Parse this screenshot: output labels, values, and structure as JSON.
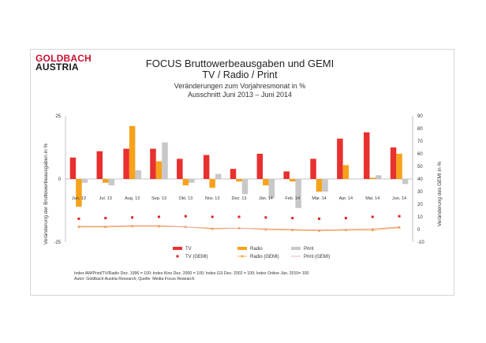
{
  "logo": {
    "line1": "GOLDBACH",
    "line2": "AUSTRIA"
  },
  "header": {
    "title": "FOCUS Bruttowerbeausgaben und GEMI",
    "subtitle": "TV / Radio / Print",
    "line3": "Veränderungen zum Vorjahresmonat in %",
    "line4": "Ausschnitt  Juni 2013 –  Juni 2014"
  },
  "footnotes": {
    "line1": "Index AW/Print/TV/Radio Dez. 1996 = 100; Index Kino Dez. 2000 = 100; Index GS Dez. 2002 = 100; Index Online  Jän. 2010= 100",
    "line2": "Autor: Goldbach Austria Research; Quelle: Media Focus Research"
  },
  "colors": {
    "tv": "#e8302f",
    "radio": "#f7a21b",
    "print": "#c8c8c8",
    "tv_gemi": "#d9261c",
    "radio_gemi": "#f0a030",
    "print_gemi": "#e6a0a0"
  },
  "chart_data": {
    "type": "bar",
    "title": "FOCUS Bruttowerbeausgaben und GEMI",
    "categories": [
      "Jun. 13",
      "Jul. 13",
      "Aug. 13",
      "Sep. 13",
      "Okt. 13",
      "Nov. 13",
      "Dez. 13",
      "Jän. 14",
      "Feb. 14",
      "Mär. 14",
      "Apr. 14",
      "Mai. 14",
      "Jun. 14"
    ],
    "ylabel": "Veränderung der Bruttowerbeausgaben in %",
    "y2label": "Veränderung des GEMI in %",
    "ylim": [
      -25,
      25
    ],
    "y2lim": [
      -10,
      90
    ],
    "yticks": [
      25,
      0,
      -25
    ],
    "y2ticks": [
      90,
      80,
      70,
      60,
      50,
      40,
      30,
      20,
      10,
      0,
      -10
    ],
    "legend_position": "bottom",
    "series": [
      {
        "name": "TV",
        "kind": "bar",
        "axis": "left",
        "values": [
          8.5,
          11,
          12,
          12,
          8,
          9.5,
          4,
          10,
          3,
          8,
          16,
          18.5,
          12.5
        ]
      },
      {
        "name": "Radio",
        "kind": "bar",
        "axis": "left",
        "values": [
          -11,
          -1.5,
          21,
          7,
          -2.5,
          -3.5,
          -1,
          -2.5,
          -1,
          -5,
          5.5,
          0.5,
          10
        ]
      },
      {
        "name": "Print",
        "kind": "bar",
        "axis": "left",
        "values": [
          -1.5,
          -2.5,
          3.5,
          14.5,
          -1.5,
          2,
          -6,
          -7.5,
          -11.5,
          -5,
          0,
          1.5,
          -2
        ]
      },
      {
        "name": "TV (GEMI)",
        "kind": "line",
        "axis": "right",
        "values": [
          8.5,
          9,
          9.5,
          10,
          10.5,
          10,
          10,
          9.5,
          9,
          8.5,
          9,
          10,
          10.5
        ]
      },
      {
        "name": "Radio (GEMI)",
        "kind": "line",
        "axis": "right",
        "values": [
          2,
          2,
          2.5,
          2.5,
          2,
          0.5,
          1,
          0,
          -0.5,
          -1,
          -0.5,
          -0.5,
          1.5
        ]
      },
      {
        "name": "Print (GEMI)",
        "kind": "line",
        "axis": "right",
        "values": [
          2.5,
          2.5,
          3,
          3,
          2,
          1,
          1,
          0.5,
          0,
          -0.5,
          0,
          0.5,
          2
        ]
      }
    ]
  }
}
